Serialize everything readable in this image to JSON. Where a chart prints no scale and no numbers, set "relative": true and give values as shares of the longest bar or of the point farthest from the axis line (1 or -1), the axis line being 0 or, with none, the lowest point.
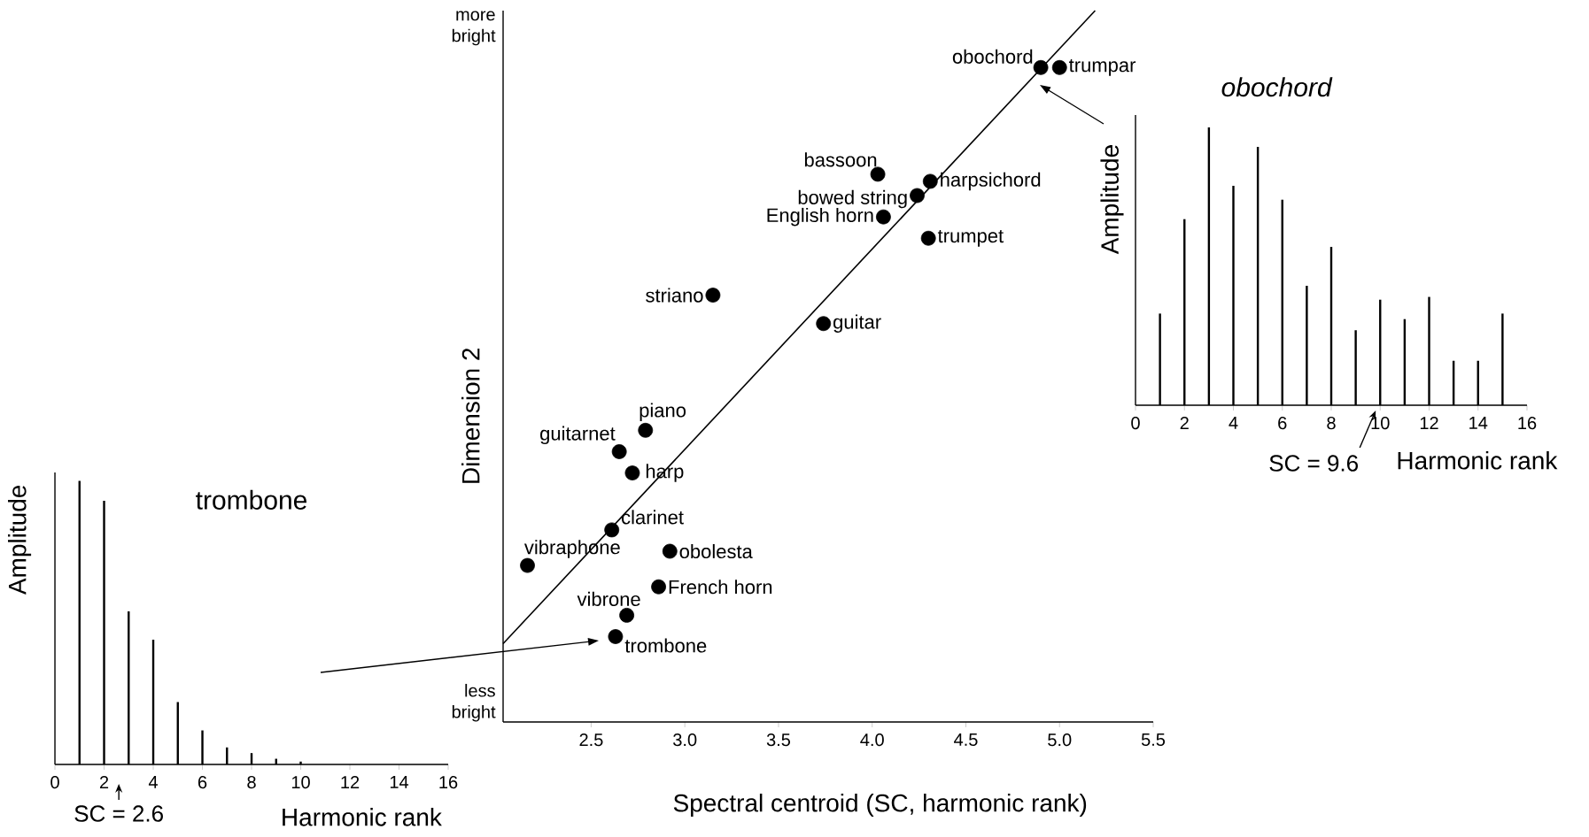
{
  "chart_data": [
    {
      "type": "bar",
      "title": "trombone",
      "xlabel": "Harmonic rank",
      "ylabel": "Amplitude",
      "relative": true,
      "color": "#000000",
      "x": [
        1,
        2,
        3,
        4,
        5,
        6,
        7,
        8,
        9,
        10
      ],
      "values": [
        1,
        0.93,
        0.54,
        0.44,
        0.22,
        0.12,
        0.06,
        0.04,
        0.02,
        0.01
      ],
      "xlim": [
        0,
        16
      ],
      "xticks": [
        0,
        2,
        4,
        6,
        8,
        10,
        12,
        14,
        16
      ],
      "annotations": [
        {
          "text": "SC = 2.6",
          "x": 2.6,
          "y": 0
        }
      ]
    },
    {
      "type": "scatter",
      "xlabel": "Spectral centroid (SC, harmonic rank)",
      "ylabel": "Dimension 2",
      "relative": true,
      "marker": "circle",
      "xlim": [
        2.03,
        5.5
      ],
      "xticks": [
        2.5,
        {
          "value": 3,
          "label": "3.0"
        },
        3.5,
        {
          "value": 4,
          "label": "4.0"
        },
        4.5,
        {
          "value": 5,
          "label": "5.0"
        },
        5.5
      ],
      "annotations": [
        "more bright",
        "less bright"
      ],
      "series": [
        {
          "name": "obochord",
          "color": "#000000",
          "x": [
            4.9
          ],
          "values": [
            0.92
          ]
        },
        {
          "name": "trumpar",
          "color": "#000000",
          "x": [
            5.0
          ],
          "values": [
            0.92
          ]
        },
        {
          "name": "bassoon",
          "color": "#000000",
          "x": [
            4.03
          ],
          "values": [
            0.77
          ]
        },
        {
          "name": "bowed string",
          "color": "#000000",
          "x": [
            4.24
          ],
          "values": [
            0.74
          ]
        },
        {
          "name": "harpsichord",
          "color": "#000000",
          "x": [
            4.31
          ],
          "values": [
            0.76
          ]
        },
        {
          "name": "English horn",
          "color": "#000000",
          "x": [
            4.06
          ],
          "values": [
            0.71
          ]
        },
        {
          "name": "trumpet",
          "color": "#000000",
          "x": [
            4.3
          ],
          "values": [
            0.68
          ]
        },
        {
          "name": "striano",
          "color": "#000000",
          "x": [
            3.15
          ],
          "values": [
            0.6
          ]
        },
        {
          "name": "guitar",
          "color": "#000000",
          "x": [
            3.74
          ],
          "values": [
            0.56
          ]
        },
        {
          "name": "piano",
          "color": "#000000",
          "x": [
            2.79
          ],
          "values": [
            0.41
          ]
        },
        {
          "name": "guitarnet",
          "color": "#000000",
          "x": [
            2.65
          ],
          "values": [
            0.38
          ]
        },
        {
          "name": "harp",
          "color": "#000000",
          "x": [
            2.72
          ],
          "values": [
            0.35
          ]
        },
        {
          "name": "clarinet",
          "color": "#000000",
          "x": [
            2.61
          ],
          "values": [
            0.27
          ]
        },
        {
          "name": "vibraphone",
          "color": "#000000",
          "x": [
            2.16
          ],
          "values": [
            0.22
          ]
        },
        {
          "name": "obolesta",
          "color": "#000000",
          "x": [
            2.92
          ],
          "values": [
            0.24
          ]
        },
        {
          "name": "French horn",
          "color": "#000000",
          "x": [
            2.86
          ],
          "values": [
            0.19
          ]
        },
        {
          "name": "vibrone",
          "color": "#000000",
          "x": [
            2.69
          ],
          "values": [
            0.15
          ]
        },
        {
          "name": "trombone",
          "color": "#000000",
          "x": [
            2.63
          ],
          "values": [
            0.12
          ]
        },
        {
          "type": "line",
          "marker": "none",
          "color": "#000000",
          "x": [
            2.03,
            5.19
          ],
          "values": [
            0.11,
            1.0
          ]
        }
      ]
    },
    {
      "type": "bar",
      "title": "obochord",
      "xlabel": "Harmonic rank",
      "ylabel": "Amplitude",
      "relative": true,
      "color": "#000000",
      "x": [
        1,
        2,
        3,
        4,
        5,
        6,
        7,
        8,
        9,
        10,
        11,
        12,
        13,
        14,
        15
      ],
      "values": [
        0.33,
        0.67,
        1,
        0.79,
        0.93,
        0.74,
        0.43,
        0.57,
        0.27,
        0.38,
        0.31,
        0.39,
        0.16,
        0.16,
        0.33
      ],
      "xlim": [
        0,
        16
      ],
      "xticks": [
        0,
        2,
        4,
        6,
        8,
        10,
        12,
        14,
        16
      ],
      "annotations": [
        {
          "text": "SC = 9.6",
          "x": 9.6,
          "y": 0
        }
      ]
    }
  ]
}
